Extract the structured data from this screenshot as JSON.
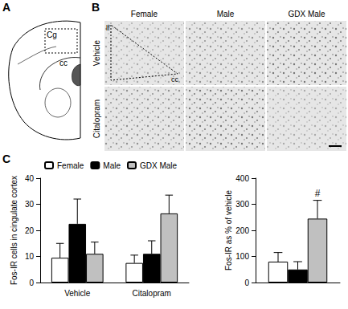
{
  "panels": {
    "A": {
      "label": "A",
      "regions": [
        "Cg",
        "cc"
      ]
    },
    "B": {
      "label": "B",
      "columns": [
        "Female",
        "Male",
        "GDX Male"
      ],
      "rows": [
        "Vehicle",
        "Citalopram"
      ],
      "region_labels": [
        "lf",
        "cc"
      ]
    },
    "C": {
      "label": "C"
    }
  },
  "chart_data": [
    {
      "type": "bar",
      "categories": [
        "Vehicle",
        "Citalopram"
      ],
      "series": [
        {
          "name": "Female",
          "color": "#ffffff",
          "values": [
            9.5,
            7.5
          ],
          "errors": [
            5.5,
            3
          ]
        },
        {
          "name": "Male",
          "color": "#000000",
          "values": [
            22.5,
            11
          ],
          "errors": [
            9.5,
            5
          ]
        },
        {
          "name": "GDX Male",
          "color": "#c0c0c0",
          "values": [
            11,
            26.5
          ],
          "errors": [
            4.5,
            7
          ]
        }
      ],
      "y_label": "Fos-IR cells in cingulate cortex",
      "ylim": [
        0,
        40
      ],
      "yticks": [
        0,
        10,
        20,
        30,
        40
      ],
      "grid": false,
      "legend": "top-left"
    },
    {
      "type": "bar",
      "categories": [
        null
      ],
      "series": [
        {
          "name": "Female",
          "color": "#ffffff",
          "values": [
            80
          ],
          "errors": [
            35
          ]
        },
        {
          "name": "Male",
          "color": "#000000",
          "values": [
            50
          ],
          "errors": [
            30
          ]
        },
        {
          "name": "GDX Male",
          "color": "#c0c0c0",
          "values": [
            245
          ],
          "errors": [
            70
          ]
        }
      ],
      "y_label": "Fos-IR as % of vehicle",
      "ylim": [
        0,
        400
      ],
      "yticks": [
        0,
        100,
        200,
        300,
        400
      ],
      "grid": false,
      "annotations": [
        {
          "text": "#",
          "series": "GDX Male",
          "category": 0
        }
      ]
    }
  ]
}
